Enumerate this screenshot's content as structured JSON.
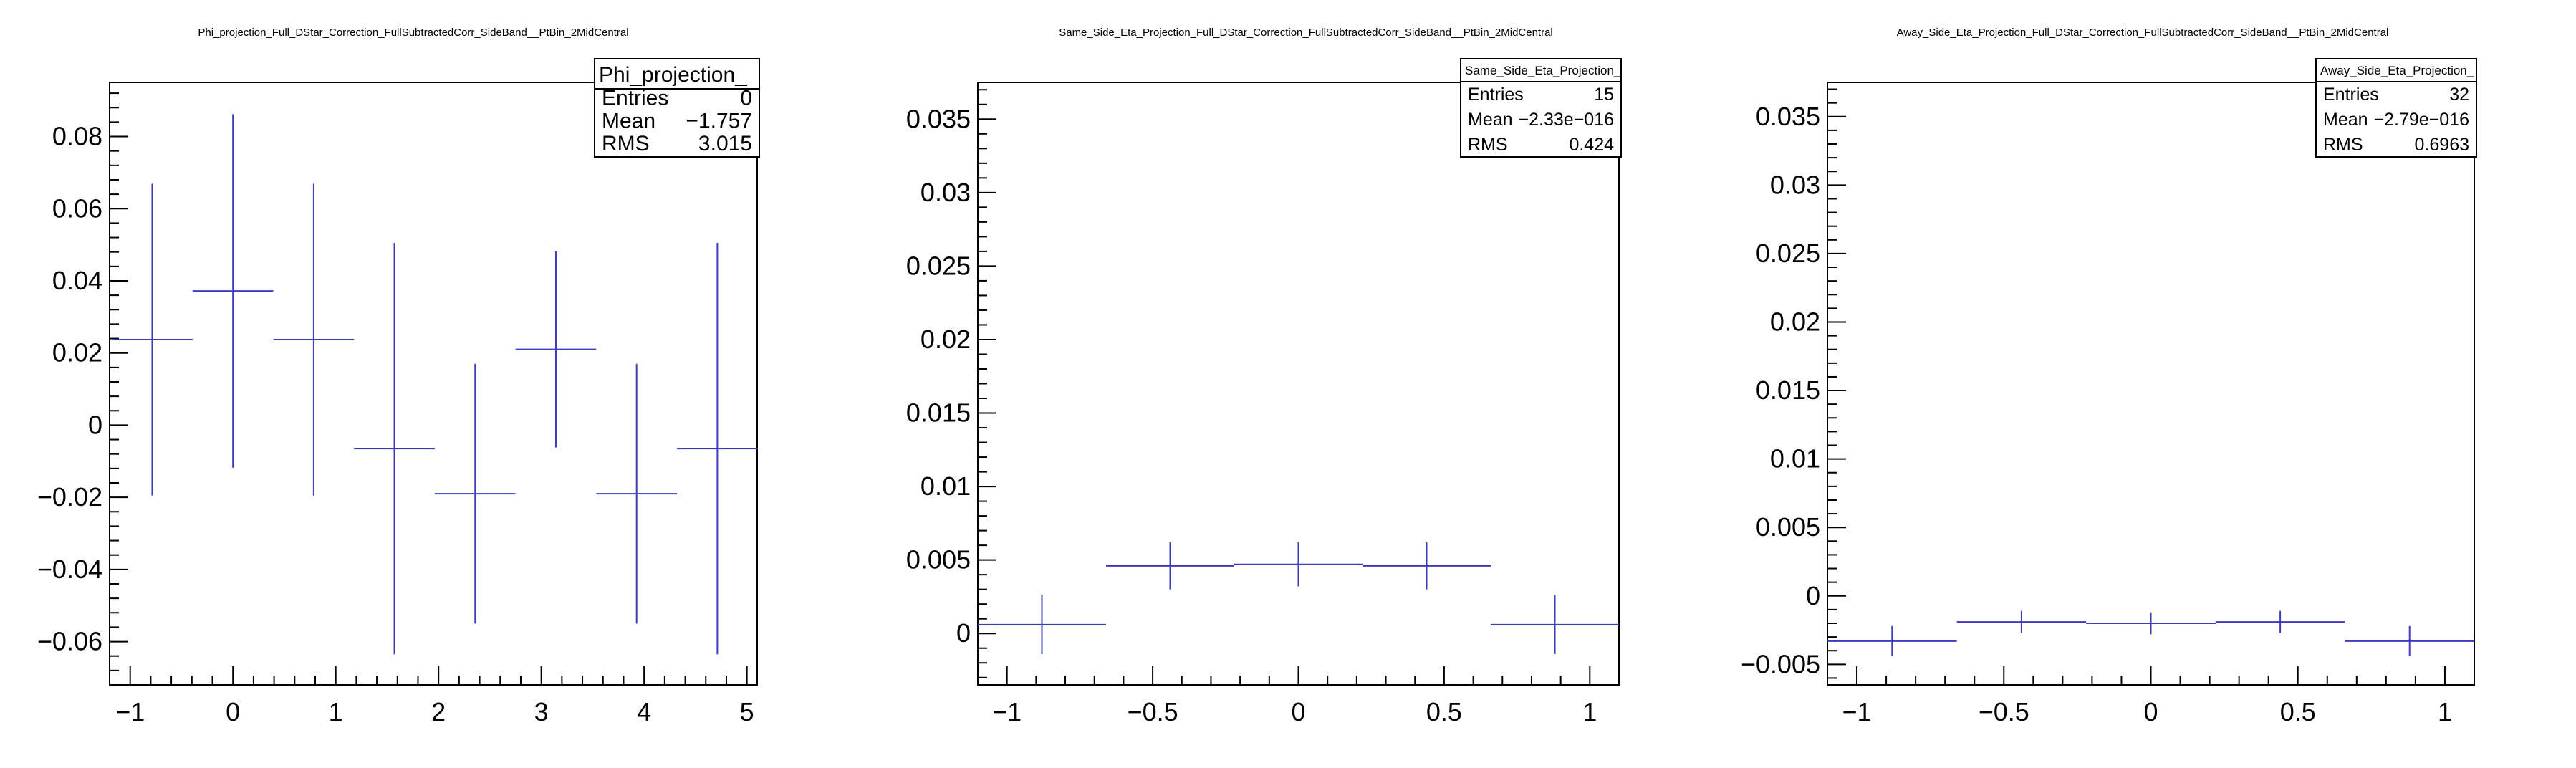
{
  "chart_data": [
    {
      "type": "histogram",
      "title": "Phi_projection_Full_DStar_Correction_FullSubtractedCorr_SideBand__PtBin_2MidCentral",
      "xlabel": "",
      "ylabel": "",
      "xlim": [
        -1.2,
        5.1
      ],
      "ylim": [
        -0.072,
        0.095
      ],
      "xticks": [
        -1,
        0,
        1,
        2,
        3,
        4,
        5
      ],
      "yticks": [
        -0.06,
        -0.04,
        -0.02,
        0,
        0.02,
        0.04,
        0.06,
        0.08
      ],
      "ytick_labels": [
        "−0.06",
        "−0.04",
        "−0.02",
        "0",
        "0.02",
        "0.04",
        "0.06",
        "0.08"
      ],
      "xtick_labels": [
        "−1",
        "0",
        "1",
        "2",
        "3",
        "4",
        "5"
      ],
      "bins": [
        {
          "xlo": -1.178,
          "xhi": -0.393,
          "y": 0.0237,
          "err": 0.0432
        },
        {
          "xlo": -0.393,
          "xhi": 0.393,
          "y": 0.0372,
          "err": 0.049
        },
        {
          "xlo": 0.393,
          "xhi": 1.178,
          "y": 0.0237,
          "err": 0.0432
        },
        {
          "xlo": 1.178,
          "xhi": 1.963,
          "y": -0.0065,
          "err": 0.057
        },
        {
          "xlo": 1.963,
          "xhi": 2.749,
          "y": -0.019,
          "err": 0.036
        },
        {
          "xlo": 2.749,
          "xhi": 3.534,
          "y": 0.021,
          "err": 0.0272
        },
        {
          "xlo": 3.534,
          "xhi": 4.32,
          "y": -0.019,
          "err": 0.036
        },
        {
          "xlo": 4.32,
          "xhi": 5.105,
          "y": -0.0065,
          "err": 0.057
        }
      ],
      "stats": {
        "name": "Phi_projection_",
        "rows": [
          {
            "label": "Entries",
            "value": "0"
          },
          {
            "label": "Mean",
            "value": "−1.757"
          },
          {
            "label": "RMS",
            "value": "3.015"
          }
        ]
      },
      "grid": false,
      "line_color": "#3b3bbd"
    },
    {
      "type": "histogram",
      "title": "Same_Side_Eta_Projection_Full_DStar_Correction_FullSubtractedCorr_SideBand__PtBin_2MidCentral",
      "xlabel": "",
      "ylabel": "",
      "xlim": [
        -1.1,
        1.1
      ],
      "ylim": [
        -0.0035,
        0.0375
      ],
      "xticks": [
        -1,
        -0.5,
        0,
        0.5,
        1
      ],
      "xtick_labels": [
        "−1",
        "−0.5",
        "0",
        "0.5",
        "1"
      ],
      "yticks": [
        0,
        0.005,
        0.01,
        0.015,
        0.02,
        0.025,
        0.03,
        0.035
      ],
      "ytick_labels": [
        "0",
        "0.005",
        "0.01",
        "0.015",
        "0.02",
        "0.025",
        "0.03",
        "0.035"
      ],
      "bins": [
        {
          "xlo": -1.1,
          "xhi": -0.66,
          "y": 0.0006,
          "err": 0.002
        },
        {
          "xlo": -0.66,
          "xhi": -0.22,
          "y": 0.0046,
          "err": 0.0016
        },
        {
          "xlo": -0.22,
          "xhi": 0.22,
          "y": 0.0047,
          "err": 0.0015
        },
        {
          "xlo": 0.22,
          "xhi": 0.66,
          "y": 0.0046,
          "err": 0.0016
        },
        {
          "xlo": 0.66,
          "xhi": 1.1,
          "y": 0.0006,
          "err": 0.002
        }
      ],
      "stats": {
        "name": "Same_Side_Eta_Projection_",
        "rows": [
          {
            "label": "Entries",
            "value": "15"
          },
          {
            "label": "Mean",
            "value": "−2.33e−016"
          },
          {
            "label": "RMS",
            "value": "0.424"
          }
        ]
      },
      "grid": false,
      "line_color": "#3b3bbd"
    },
    {
      "type": "histogram",
      "title": "Away_Side_Eta_Projection_Full_DStar_Correction_FullSubtractedCorr_SideBand__PtBin_2MidCentral",
      "xlabel": "",
      "ylabel": "",
      "xlim": [
        -1.1,
        1.1
      ],
      "ylim": [
        -0.0065,
        0.0375
      ],
      "xticks": [
        -1,
        -0.5,
        0,
        0.5,
        1
      ],
      "xtick_labels": [
        "−1",
        "−0.5",
        "0",
        "0.5",
        "1"
      ],
      "yticks": [
        -0.005,
        0,
        0.005,
        0.01,
        0.015,
        0.02,
        0.025,
        0.03,
        0.035
      ],
      "ytick_labels": [
        "−0.005",
        "0",
        "0.005",
        "0.01",
        "0.015",
        "0.02",
        "0.025",
        "0.03",
        "0.035"
      ],
      "bins": [
        {
          "xlo": -1.1,
          "xhi": -0.66,
          "y": -0.0033,
          "err": 0.0011
        },
        {
          "xlo": -0.66,
          "xhi": -0.22,
          "y": -0.0019,
          "err": 0.0008
        },
        {
          "xlo": -0.22,
          "xhi": 0.22,
          "y": -0.002,
          "err": 0.0008
        },
        {
          "xlo": 0.22,
          "xhi": 0.66,
          "y": -0.0019,
          "err": 0.0008
        },
        {
          "xlo": 0.66,
          "xhi": 1.1,
          "y": -0.0033,
          "err": 0.0011
        }
      ],
      "stats": {
        "name": "Away_Side_Eta_Projection_",
        "rows": [
          {
            "label": "Entries",
            "value": "32"
          },
          {
            "label": "Mean",
            "value": "−2.79e−016"
          },
          {
            "label": "RMS",
            "value": "0.6963"
          }
        ]
      },
      "grid": false,
      "line_color": "#3b3bbd"
    }
  ]
}
